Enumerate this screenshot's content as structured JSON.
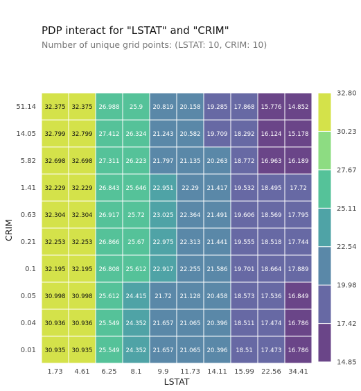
{
  "chart_data": {
    "type": "heatmap",
    "title": "PDP interact for \"LSTAT\" and \"CRIM\"",
    "subtitle": "Number of unique grid points: (LSTAT: 10, CRIM: 10)",
    "xlabel": "LSTAT",
    "ylabel": "CRIM",
    "x_ticks": [
      "1.73",
      "4.61",
      "6.25",
      "8.1",
      "9.9",
      "11.73",
      "14.11",
      "15.99",
      "22.56",
      "34.41"
    ],
    "y_ticks_top_to_bottom": [
      "51.14",
      "14.05",
      "5.82",
      "1.41",
      "0.63",
      "0.21",
      "0.1",
      "0.05",
      "0.04",
      "0.01"
    ],
    "values_top_to_bottom": [
      [
        "32.375",
        "32.375",
        "26.988",
        "25.9",
        "20.819",
        "20.158",
        "19.285",
        "17.868",
        "15.776",
        "14.852"
      ],
      [
        "32.799",
        "32.799",
        "27.412",
        "26.324",
        "21.243",
        "20.582",
        "19.709",
        "18.292",
        "16.124",
        "15.178"
      ],
      [
        "32.698",
        "32.698",
        "27.311",
        "26.223",
        "21.797",
        "21.135",
        "20.263",
        "18.772",
        "16.963",
        "16.189"
      ],
      [
        "32.229",
        "32.229",
        "26.843",
        "25.646",
        "22.951",
        "22.29",
        "21.417",
        "19.532",
        "18.495",
        "17.72"
      ],
      [
        "32.304",
        "32.304",
        "26.917",
        "25.72",
        "23.025",
        "22.364",
        "21.491",
        "19.606",
        "18.569",
        "17.795"
      ],
      [
        "32.253",
        "32.253",
        "26.866",
        "25.67",
        "22.975",
        "22.313",
        "21.441",
        "19.555",
        "18.518",
        "17.744"
      ],
      [
        "32.195",
        "32.195",
        "26.808",
        "25.612",
        "22.917",
        "22.255",
        "21.586",
        "19.701",
        "18.664",
        "17.889"
      ],
      [
        "30.998",
        "30.998",
        "25.612",
        "24.415",
        "21.72",
        "21.128",
        "20.458",
        "18.573",
        "17.536",
        "16.849"
      ],
      [
        "30.936",
        "30.936",
        "25.549",
        "24.352",
        "21.657",
        "21.065",
        "20.396",
        "18.511",
        "17.474",
        "16.786"
      ],
      [
        "30.935",
        "30.935",
        "25.549",
        "24.352",
        "21.657",
        "21.065",
        "20.396",
        "18.51",
        "17.473",
        "16.786"
      ]
    ],
    "colorbar": {
      "boundaries": [
        "14.85",
        "17.42",
        "19.98",
        "22.54",
        "25.11",
        "27.67",
        "30.23",
        "32.80"
      ],
      "colors": [
        "#6a4588",
        "#6769a4",
        "#5a88a8",
        "#4fa3a6",
        "#55c299",
        "#8ddc82",
        "#d4e24a"
      ]
    }
  }
}
